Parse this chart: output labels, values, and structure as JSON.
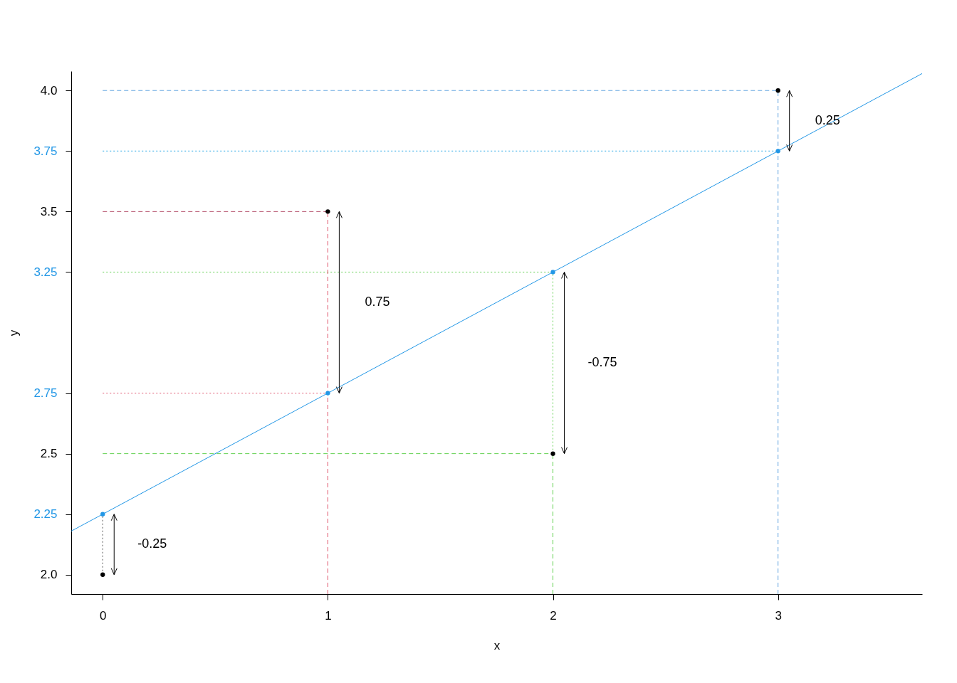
{
  "chart_data": {
    "type": "scatter",
    "xlabel": "x",
    "ylabel": "y",
    "xlim": [
      -0.14,
      3.64
    ],
    "ylim": [
      1.92,
      4.08
    ],
    "xticks": [
      0,
      1,
      2,
      3
    ],
    "yticks": [
      {
        "value": 2,
        "label": "2.0"
      },
      2.25,
      2.5,
      2.75,
      3.25,
      3.5,
      3.75,
      {
        "value": 4,
        "label": "4.0"
      }
    ],
    "grid": false,
    "series": [
      {
        "type": "line",
        "x": [
          0,
          3
        ],
        "values": [
          4,
          4
        ],
        "color": "#61a4e0",
        "line_style": "dashed"
      },
      {
        "type": "line",
        "x": [
          0,
          3
        ],
        "values": [
          3.75,
          3.75
        ],
        "color": "#28a8e5",
        "line_style": "dotted"
      },
      {
        "type": "line",
        "x": [
          0,
          1
        ],
        "values": [
          3.5,
          3.5
        ],
        "color": "#b5506b",
        "line_style": "dashed"
      },
      {
        "type": "line",
        "x": [
          0,
          2
        ],
        "values": [
          3.25,
          3.25
        ],
        "color": "#61d04f",
        "line_style": "dotted"
      },
      {
        "type": "line",
        "x": [
          0,
          1
        ],
        "values": [
          2.75,
          2.75
        ],
        "color": "#df536b",
        "line_style": "dotted"
      },
      {
        "type": "line",
        "x": [
          0,
          2
        ],
        "values": [
          2.5,
          2.5
        ],
        "color": "#61d04f",
        "line_style": "dashed"
      },
      {
        "type": "line",
        "x": [
          3,
          3
        ],
        "values": [
          1.92,
          4
        ],
        "color": "#61a4e0",
        "line_style": "dashed"
      },
      {
        "type": "line",
        "x": [
          1,
          1
        ],
        "values": [
          1.92,
          3.5
        ],
        "color": "#df536b",
        "line_style": "dashed"
      },
      {
        "type": "line",
        "x": [
          2,
          2
        ],
        "values": [
          2.5,
          3.25
        ],
        "color": "#61d04f",
        "line_style": "dotted"
      },
      {
        "type": "line",
        "x": [
          2,
          2
        ],
        "values": [
          1.92,
          2.5
        ],
        "color": "#61d04f",
        "line_style": "dashed"
      },
      {
        "type": "line",
        "x": [
          0,
          0
        ],
        "values": [
          2,
          2.25
        ],
        "color": "#555555",
        "line_style": "dotted"
      },
      {
        "type": "line",
        "x": [
          -0.14,
          3.64
        ],
        "values": [
          2.18,
          4.07
        ],
        "color": "#2297e6",
        "line_style": "solid"
      },
      {
        "x": [
          0,
          1,
          2,
          3
        ],
        "values": [
          2,
          3.5,
          2.5,
          4
        ],
        "color": "#000000",
        "marker": "circle"
      },
      {
        "type": "scatter",
        "x": [
          0,
          1,
          2,
          3
        ],
        "values": [
          2.25,
          2.75,
          3.25,
          3.75
        ],
        "color": "#2297e6",
        "marker": "circle"
      }
    ],
    "annotations": [
      "-0.25",
      "0.75",
      "-0.75",
      "0.25"
    ]
  }
}
